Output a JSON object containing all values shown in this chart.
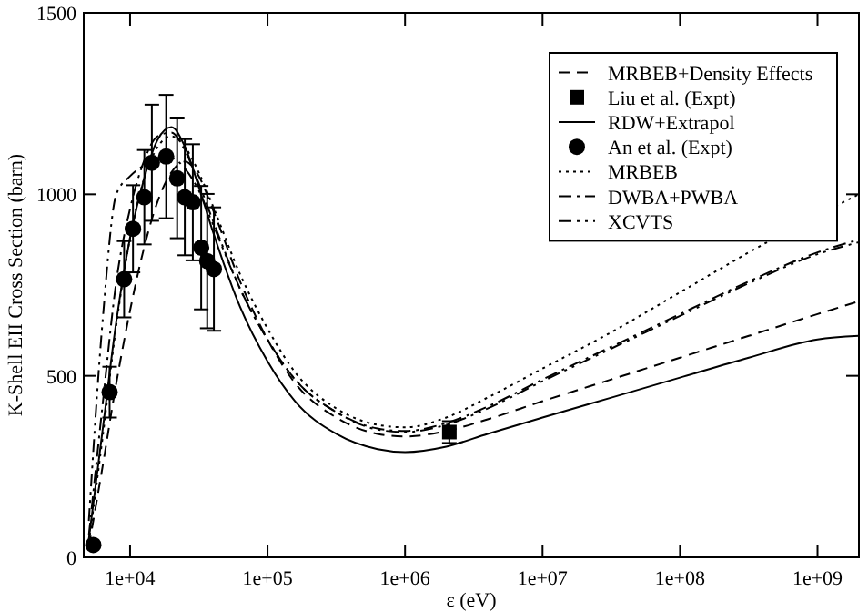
{
  "chart_data": {
    "type": "line",
    "xlabel": "ε (eV)",
    "ylabel": "K-Shell EII Cross Section (barn)",
    "log": "x",
    "xlim": [
      4600,
      2000000000
    ],
    "ylim": [
      0,
      1500
    ],
    "xticks": [
      {
        "value": 10000,
        "label": "1e+04"
      },
      {
        "value": 100000,
        "label": "1e+05"
      },
      {
        "value": 1000000,
        "label": "1e+06"
      },
      {
        "value": 10000000,
        "label": "1e+07"
      },
      {
        "value": 100000000,
        "label": "1e+08"
      },
      {
        "value": 1000000000,
        "label": "1e+09"
      }
    ],
    "yticks": [
      0,
      500,
      1000,
      1500
    ],
    "grid": false,
    "legend": "top right",
    "x": [
      5012,
      6310,
      7943,
      10000,
      12589,
      15849,
      19953,
      25119,
      31623,
      39811,
      63096,
      100000,
      158489,
      316228,
      630957,
      1000000,
      1995262,
      3981072,
      10000000,
      31622777,
      100000000,
      316227766,
      1000000000,
      1995262315
    ],
    "series": [
      {
        "name": "MRBEB+Density Effects",
        "color": "#000000",
        "line_style": "dashed",
        "values": [
          30,
          250,
          480,
          680,
          850,
          980,
          1060,
          1090,
          1050,
          960,
          760,
          600,
          480,
          385,
          340,
          333,
          348,
          380,
          430,
          490,
          550,
          610,
          670,
          705
        ]
      },
      {
        "name": "Liu et al. (Expt)",
        "type": "scatter",
        "marker": "square",
        "color": "#000000",
        "x": [
          2100000
        ],
        "values": [
          345
        ],
        "errors": [
          30
        ]
      },
      {
        "name": "RDW+Extrapol",
        "color": "#000000",
        "line_style": "solid",
        "values": [
          50,
          350,
          650,
          880,
          1040,
          1150,
          1185,
          1130,
          1020,
          900,
          690,
          540,
          430,
          340,
          298,
          290,
          305,
          340,
          385,
          440,
          495,
          550,
          600,
          610
        ]
      },
      {
        "name": "An et al. (Expt)",
        "type": "scatter",
        "marker": "circle",
        "color": "#000000",
        "x": [
          5400,
          7100,
          9050,
          10500,
          12700,
          14400,
          18300,
          22000,
          25000,
          28600,
          32900,
          36400,
          40700
        ],
        "values": [
          34,
          455,
          766,
          905,
          992,
          1087,
          1104,
          1044,
          992,
          978,
          853,
          816,
          794
        ],
        "errors": [
          null,
          70,
          105,
          120,
          130,
          160,
          170,
          165,
          160,
          160,
          170,
          185,
          170
        ]
      },
      {
        "name": "MRBEB",
        "color": "#000000",
        "line_style": "dotted",
        "values": [
          40,
          330,
          640,
          880,
          1040,
          1130,
          1160,
          1130,
          1060,
          970,
          780,
          630,
          510,
          410,
          365,
          358,
          385,
          440,
          520,
          620,
          730,
          840,
          null,
          1000
        ]
      },
      {
        "name": "DWBA+PWBA",
        "color": "#000000",
        "line_style": "dashdot",
        "values": [
          60,
          420,
          760,
          960,
          1090,
          1160,
          1170,
          1120,
          1030,
          930,
          740,
          600,
          490,
          400,
          355,
          348,
          370,
          415,
          490,
          580,
          670,
          760,
          840,
          875
        ]
      },
      {
        "name": "XCVTS",
        "color": "#000000",
        "line_style": "dashdotdot",
        "values": [
          100,
          650,
          1000,
          1050,
          1080,
          1100,
          1100,
          1070,
          1010,
          920,
          740,
          600,
          490,
          400,
          352,
          345,
          365,
          410,
          485,
          575,
          665,
          755,
          835,
          868
        ]
      }
    ]
  }
}
